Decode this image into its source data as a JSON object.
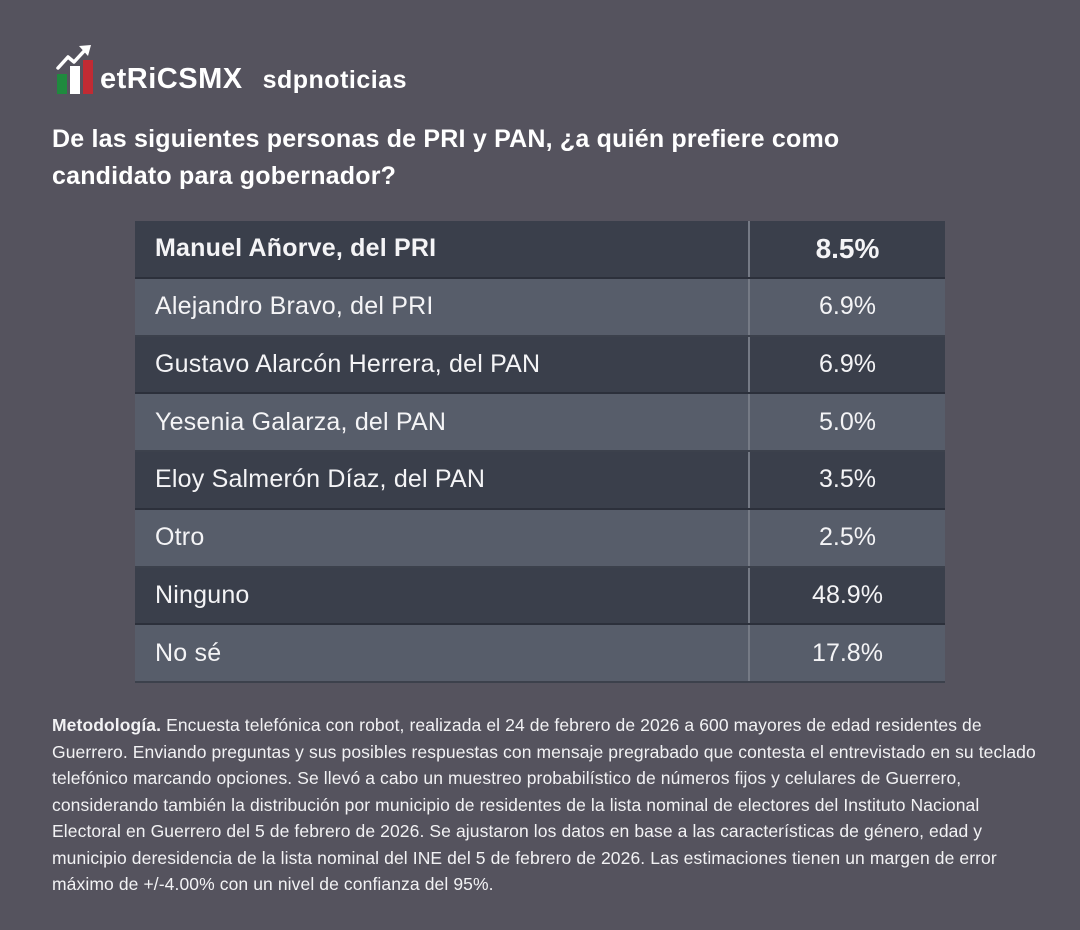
{
  "header": {
    "brand": "etRiCSMX",
    "partner": "sdpnoticias",
    "logo_colors": {
      "green_bar": "#1F8A3E",
      "white_bar": "#FFFFFF",
      "red_bar": "#C12B33",
      "arrow": "#FFFFFF"
    }
  },
  "title": {
    "line1": "De las siguientes personas de PRI y PAN, ¿a quién prefiere como",
    "line2": "candidato para gobernador?"
  },
  "table": {
    "rows": [
      {
        "label": "Manuel Añorve, del PRI",
        "value": "8.5%",
        "emphasis": true
      },
      {
        "label": "Alejandro Bravo, del PRI",
        "value": "6.9%",
        "emphasis": false
      },
      {
        "label": "Gustavo Alarcón Herrera, del PAN",
        "value": "6.9%",
        "emphasis": false
      },
      {
        "label": "Yesenia Galarza, del PAN",
        "value": "5.0%",
        "emphasis": false
      },
      {
        "label": "Eloy Salmerón Díaz, del PAN",
        "value": "3.5%",
        "emphasis": false
      },
      {
        "label": "Otro",
        "value": "2.5%",
        "emphasis": false
      },
      {
        "label": "Ninguno",
        "value": "48.9%",
        "emphasis": false
      },
      {
        "label": "No sé",
        "value": "17.8%",
        "emphasis": false
      }
    ],
    "row_colors": {
      "dark": "#3A3F4B",
      "light": "#575D6A"
    }
  },
  "methodology": {
    "label": "Metodología.",
    "text": "Encuesta telefónica con robot, realizada el 24 de febrero de 2026 a 600 mayores de edad residentes de Guerrero. Enviando preguntas y sus posibles respuestas con mensaje pregrabado que contesta el entrevistado en su teclado telefónico marcando opciones. Se llevó a cabo un muestreo probabilístico de números fijos y celulares de Guerrero, considerando también la distribución por municipio de residentes de la lista nominal de electores del Instituto Nacional Electoral en Guerrero del 5 de febrero de 2026. Se ajustaron los datos en base a las características de género, edad y municipio deresidencia de la lista nominal del INE del 5 de febrero de 2026. Las estimaciones tienen un margen de error máximo de +/-4.00% con un nivel de confianza del 95%."
  },
  "colors": {
    "background": "#55535E",
    "text": "#F4F4F6",
    "column_divider": "#757A85"
  },
  "chart_data": {
    "type": "table",
    "title": "De las siguientes personas de PRI y PAN, ¿a quién prefiere como candidato para gobernador?",
    "categories": [
      "Manuel Añorve, del PRI",
      "Alejandro Bravo, del PRI",
      "Gustavo Alarcón Herrera, del PAN",
      "Yesenia Galarza, del PAN",
      "Eloy Salmerón Díaz, del PAN",
      "Otro",
      "Ninguno",
      "No sé"
    ],
    "values": [
      8.5,
      6.9,
      6.9,
      5.0,
      3.5,
      2.5,
      48.9,
      17.8
    ],
    "unit": "%",
    "source": "etRiCSMX / sdpnoticias"
  }
}
